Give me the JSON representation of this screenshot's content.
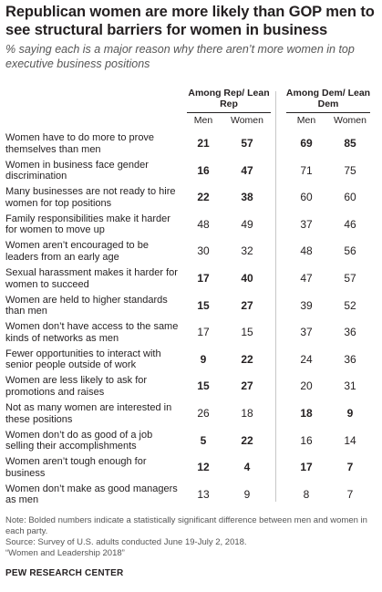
{
  "title": "Republican women are more likely than GOP men to see structural barriers for women in business",
  "subtitle": "% saying each is a major reason why there aren’t more women in top executive business positions",
  "chart_data": {
    "type": "table",
    "groups": [
      "Among Rep/ Lean Rep",
      "Among Dem/ Lean Dem"
    ],
    "columns": [
      "Men",
      "Women",
      "Men",
      "Women"
    ],
    "rows": [
      {
        "label": "Women have to do more to prove themselves than men",
        "values": [
          21,
          57,
          69,
          85
        ],
        "bold": [
          true,
          true,
          true,
          true
        ]
      },
      {
        "label": "Women in business face gender discrimination",
        "values": [
          16,
          47,
          71,
          75
        ],
        "bold": [
          true,
          true,
          false,
          false
        ]
      },
      {
        "label": "Many businesses are not ready to hire women for top positions",
        "values": [
          22,
          38,
          60,
          60
        ],
        "bold": [
          true,
          true,
          false,
          false
        ]
      },
      {
        "label": "Family responsibilities make it harder for women to move up",
        "values": [
          48,
          49,
          37,
          46
        ],
        "bold": [
          false,
          false,
          false,
          false
        ]
      },
      {
        "label": "Women aren’t encouraged to be leaders from an early age",
        "values": [
          30,
          32,
          48,
          56
        ],
        "bold": [
          false,
          false,
          false,
          false
        ]
      },
      {
        "label": "Sexual harassment makes it harder for women to succeed",
        "values": [
          17,
          40,
          47,
          57
        ],
        "bold": [
          true,
          true,
          false,
          false
        ]
      },
      {
        "label": "Women are held to higher standards than men",
        "values": [
          15,
          27,
          39,
          52
        ],
        "bold": [
          true,
          true,
          false,
          false
        ]
      },
      {
        "label": "Women don’t have access to the same kinds of networks as men",
        "values": [
          17,
          15,
          37,
          36
        ],
        "bold": [
          false,
          false,
          false,
          false
        ]
      },
      {
        "label": "Fewer opportunities to interact with senior people outside of work",
        "values": [
          9,
          22,
          24,
          36
        ],
        "bold": [
          true,
          true,
          false,
          false
        ]
      },
      {
        "label": "Women are less likely to ask for promotions and raises",
        "values": [
          15,
          27,
          20,
          31
        ],
        "bold": [
          true,
          true,
          false,
          false
        ]
      },
      {
        "label": "Not as many women are interested in these positions",
        "values": [
          26,
          18,
          18,
          9
        ],
        "bold": [
          false,
          false,
          true,
          true
        ]
      },
      {
        "label": "Women don’t do as good of a job selling their accomplishments",
        "values": [
          5,
          22,
          16,
          14
        ],
        "bold": [
          true,
          true,
          false,
          false
        ]
      },
      {
        "label": "Women aren’t tough enough for business",
        "values": [
          12,
          4,
          17,
          7
        ],
        "bold": [
          true,
          true,
          true,
          true
        ]
      },
      {
        "label": "Women don’t make as good managers as men",
        "values": [
          13,
          9,
          8,
          7
        ],
        "bold": [
          false,
          false,
          false,
          false
        ]
      }
    ]
  },
  "notes": [
    "Note: Bolded numbers indicate a statistically significant difference between men and women in each party.",
    "Source: Survey of U.S. adults conducted June 19-July 2, 2018.",
    "“Women and Leadership 2018”"
  ],
  "brand": "PEW RESEARCH CENTER"
}
